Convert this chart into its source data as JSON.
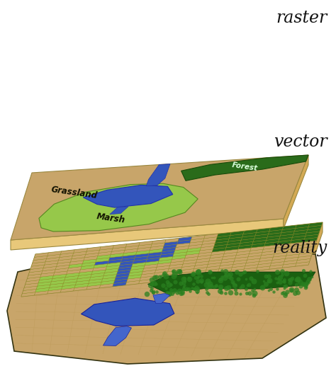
{
  "title_raster": "raster",
  "title_vector": "vector",
  "title_reality": "reality",
  "title_fontsize": 17,
  "title_color": "#111111",
  "bg_color": "#ffffff",
  "colors": {
    "tan": "#C8A56A",
    "tan_dark": "#B8954A",
    "green_dark": "#2A6B1A",
    "green_med": "#3A8A2A",
    "green_light": "#96C84A",
    "blue_lake": "#3355BB",
    "blue_river": "#4466CC",
    "panel_side_front": "#E8C87A",
    "panel_side_right": "#D4AA55",
    "grid_line_raster": "#888800",
    "grid_line_reality": "#AA8833"
  },
  "labels": {
    "grassland": "Grassland",
    "forest": "Forest",
    "marsh": "Marsh"
  }
}
